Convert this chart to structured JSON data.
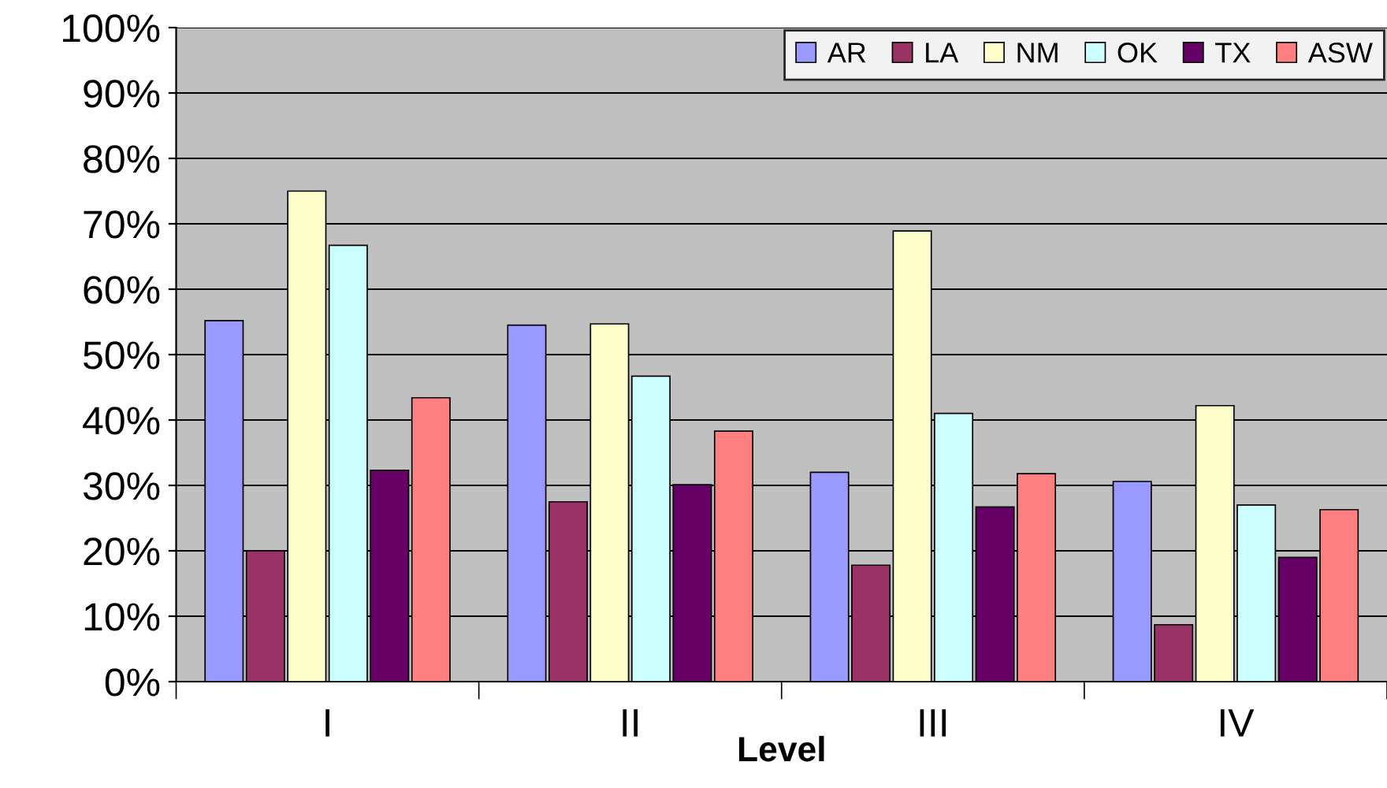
{
  "chart_data": {
    "type": "bar",
    "xlabel": "Level",
    "categories": [
      "I",
      "II",
      "III",
      "IV"
    ],
    "series": [
      {
        "name": "AR",
        "color": "#9999ff",
        "values": [
          55.2,
          54.5,
          32,
          30.6
        ]
      },
      {
        "name": "LA",
        "color": "#993366",
        "values": [
          20,
          27.5,
          17.8,
          8.7
        ]
      },
      {
        "name": "NM",
        "color": "#ffffcc",
        "values": [
          75,
          54.7,
          68.9,
          42.2
        ]
      },
      {
        "name": "OK",
        "color": "#ccffff",
        "values": [
          66.7,
          46.7,
          41,
          27
        ]
      },
      {
        "name": "TX",
        "color": "#660066",
        "values": [
          32.3,
          30.1,
          26.7,
          19
        ]
      },
      {
        "name": "ASW",
        "color": "#ff8080",
        "values": [
          43.4,
          38.3,
          31.8,
          26.3
        ]
      }
    ],
    "ylim": [
      0,
      100
    ],
    "yticks": [
      {
        "value": 0,
        "label": "0%"
      },
      {
        "value": 10,
        "label": "10%"
      },
      {
        "value": 20,
        "label": "20%"
      },
      {
        "value": 30,
        "label": "30%"
      },
      {
        "value": 40,
        "label": "40%"
      },
      {
        "value": 50,
        "label": "50%"
      },
      {
        "value": 60,
        "label": "60%"
      },
      {
        "value": 70,
        "label": "70%"
      },
      {
        "value": 80,
        "label": "80%"
      },
      {
        "value": 90,
        "label": "90%"
      },
      {
        "value": 100,
        "label": "100%"
      }
    ],
    "grid": "y",
    "legend": "top right"
  }
}
